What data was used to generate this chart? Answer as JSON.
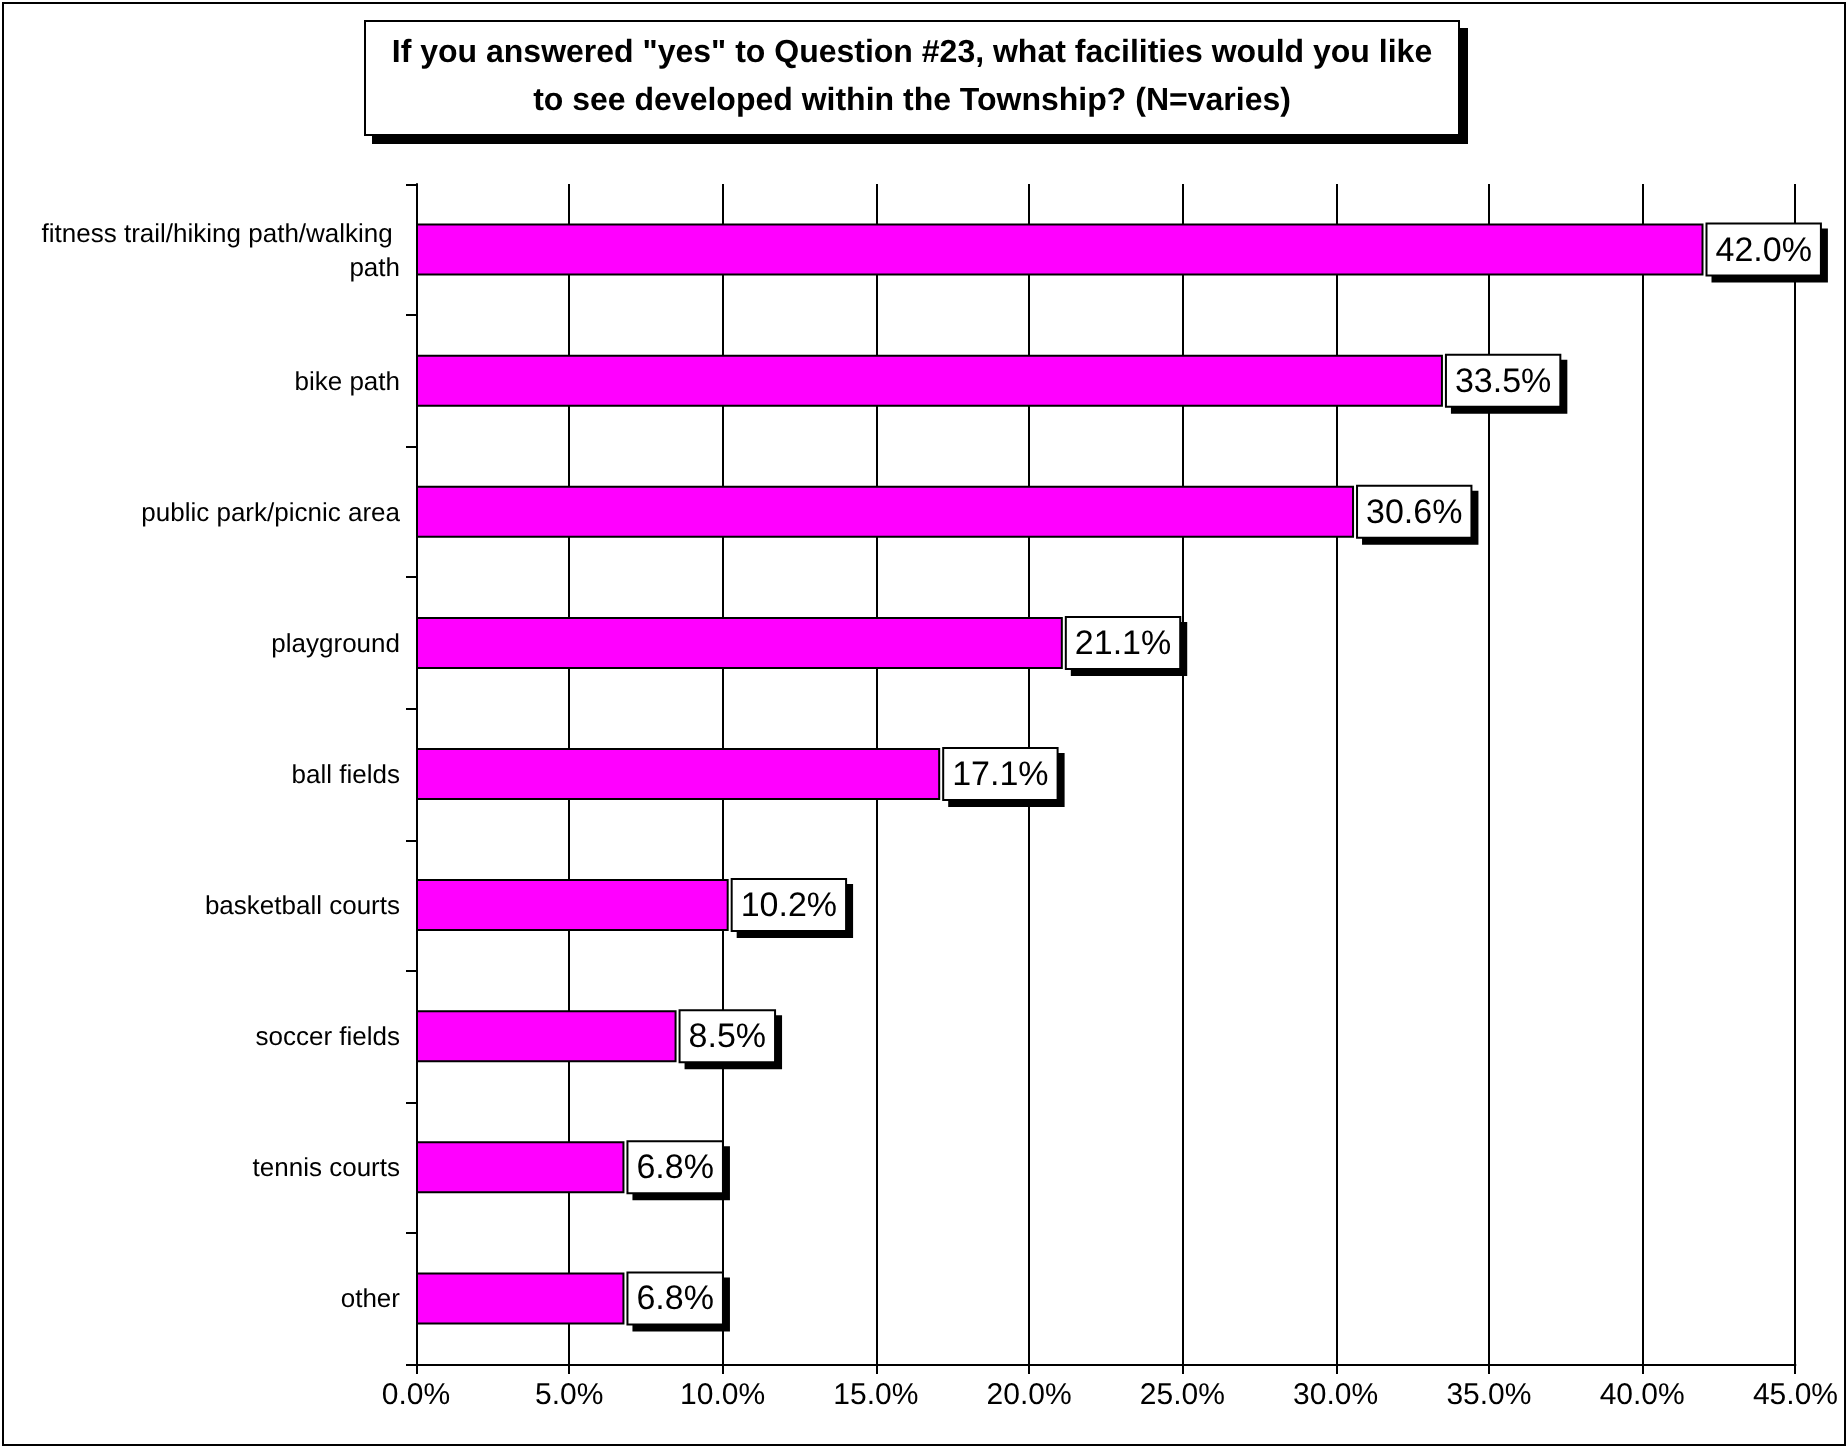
{
  "chart_data": {
    "type": "bar",
    "orientation": "horizontal",
    "title": "If you answered \"yes\" to Question #23, what facilities would you like to see developed within the Township? (N=varies)",
    "categories": [
      "fitness trail/hiking path/walking path",
      "bike path",
      "public park/picnic area",
      "playground",
      "ball fields",
      "basketball courts",
      "soccer fields",
      "tennis courts",
      "other"
    ],
    "values": [
      42.0,
      33.5,
      30.6,
      21.1,
      17.1,
      10.2,
      8.5,
      6.8,
      6.8
    ],
    "value_labels": [
      "42.0%",
      "33.5%",
      "30.6%",
      "21.1%",
      "17.1%",
      "10.2%",
      "8.5%",
      "6.8%",
      "6.8%"
    ],
    "color": "#ff00ff",
    "xlim": [
      0,
      45
    ],
    "xticks": [
      {
        "value": 0,
        "label": "0.0%"
      },
      {
        "value": 5,
        "label": "5.0%"
      },
      {
        "value": 10,
        "label": "10.0%"
      },
      {
        "value": 15,
        "label": "15.0%"
      },
      {
        "value": 20,
        "label": "20.0%"
      },
      {
        "value": 25,
        "label": "25.0%"
      },
      {
        "value": 30,
        "label": "30.0%"
      },
      {
        "value": 35,
        "label": "35.0%"
      },
      {
        "value": 40,
        "label": "40.0%"
      },
      {
        "value": 45,
        "label": "45.0%"
      }
    ],
    "grid": "x"
  }
}
